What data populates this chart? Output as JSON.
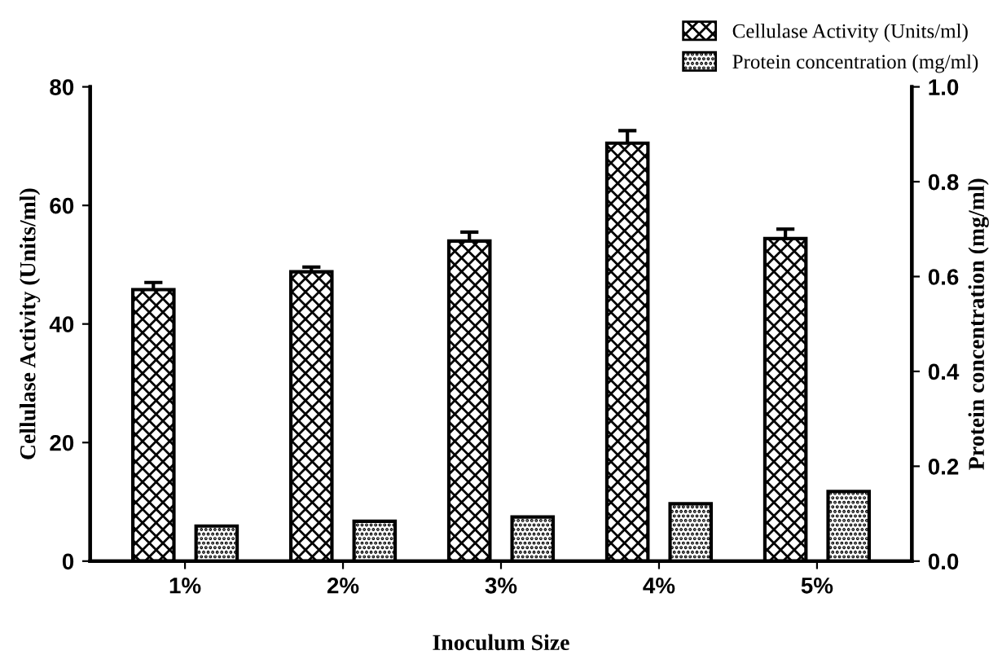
{
  "chart_data": {
    "type": "bar",
    "xlabel": "Inoculum Size",
    "ylabel": "Cellulase Activity (Units/ml)",
    "y2label": "Protein concentration (mg/ml)",
    "categories": [
      "1%",
      "2%",
      "3%",
      "4%",
      "5%"
    ],
    "series": [
      {
        "name": "Cellulase Activity (Units/ml)",
        "color": "#000000",
        "values": [
          45.8,
          48.8,
          54.0,
          70.5,
          54.4
        ],
        "errors": [
          1.2,
          0.8,
          1.5,
          2.1,
          1.6
        ]
      },
      {
        "name": "Protein concentration (mg/ml)",
        "color": "#000000",
        "values": [
          0.074,
          0.084,
          0.093,
          0.121,
          0.147
        ],
        "axis": "y2"
      }
    ],
    "ylim": [
      0,
      80
    ],
    "yticks": [
      0,
      20,
      40,
      60,
      80
    ],
    "y2lim": [
      0,
      1.0
    ],
    "y2ticks": [
      {
        "value": 0,
        "label": "0.0"
      },
      {
        "value": 0.2,
        "label": "0.2"
      },
      {
        "value": 0.4,
        "label": "0.4"
      },
      {
        "value": 0.6,
        "label": "0.6"
      },
      {
        "value": 0.8,
        "label": "0.8"
      },
      {
        "value": 1.0,
        "label": "1.0"
      }
    ],
    "grid": false,
    "legend": "top right"
  }
}
